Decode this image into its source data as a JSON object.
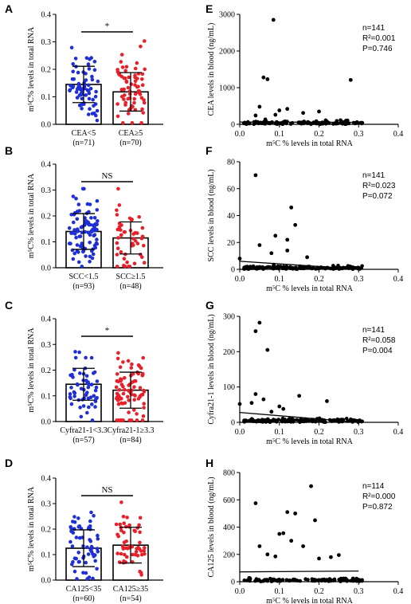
{
  "chart_data": [
    {
      "panel": "A",
      "type": "bar",
      "ylabel": "m⁵C% levels in total RNA",
      "ylim": [
        0,
        0.4
      ],
      "yticks": [
        0,
        0.1,
        0.2,
        0.3,
        0.4
      ],
      "categories": [
        "CEA<5",
        "CEA≥5"
      ],
      "ns": [
        "(n=71)",
        "(n=70)"
      ],
      "means": [
        0.145,
        0.118
      ],
      "sds": [
        0.066,
        0.07
      ],
      "point_colors": [
        "#1f2fd6",
        "#e8202a"
      ],
      "sig": "*"
    },
    {
      "panel": "B",
      "type": "bar",
      "ylabel": "m⁵C% levels in total RNA",
      "ylim": [
        0,
        0.4
      ],
      "yticks": [
        0,
        0.1,
        0.2,
        0.3,
        0.4
      ],
      "categories": [
        "SCC<1.5",
        "SCC≥1.5"
      ],
      "ns": [
        "(n=93)",
        "(n=48)"
      ],
      "means": [
        0.14,
        0.115
      ],
      "sds": [
        0.069,
        0.062
      ],
      "point_colors": [
        "#1f2fd6",
        "#e8202a"
      ],
      "sig": "NS"
    },
    {
      "panel": "C",
      "type": "bar",
      "ylabel": "m⁵C% levels in total RNA",
      "ylim": [
        0,
        0.4
      ],
      "yticks": [
        0,
        0.1,
        0.2,
        0.3,
        0.4
      ],
      "categories": [
        "Cyfra21-1<3.3",
        "Cyfra21-1≥3.3"
      ],
      "ns": [
        "(n=57)",
        "(n=84)"
      ],
      "means": [
        0.145,
        0.122
      ],
      "sds": [
        0.062,
        0.07
      ],
      "point_colors": [
        "#1f2fd6",
        "#e8202a"
      ],
      "sig": "*"
    },
    {
      "panel": "D",
      "type": "bar",
      "ylabel": "m⁵C% levels in total RNA",
      "ylim": [
        0,
        0.4
      ],
      "yticks": [
        0,
        0.1,
        0.2,
        0.3,
        0.4
      ],
      "categories": [
        "CA125<35",
        "CA125≥35"
      ],
      "ns": [
        "(n=60)",
        "(n=54)"
      ],
      "means": [
        0.125,
        0.137
      ],
      "sds": [
        0.072,
        0.07
      ],
      "point_colors": [
        "#1f2fd6",
        "#e8202a"
      ],
      "sig": "NS"
    },
    {
      "panel": "E",
      "type": "scatter",
      "xlabel": "m⁵C % levels in total RNA",
      "ylabel": "CEA levels in blood (ng/mL)",
      "xlim": [
        0,
        0.4
      ],
      "xticks": [
        0.0,
        0.1,
        0.2,
        0.3,
        0.4
      ],
      "ylim": [
        0,
        3000
      ],
      "yticks": [
        0,
        1000,
        2000,
        3000
      ],
      "stats": [
        "n=141",
        "R²=0.001",
        "P=0.746"
      ],
      "fit": [
        [
          0.0,
          62
        ],
        [
          0.3,
          55
        ]
      ],
      "outliers": [
        [
          0.085,
          2850
        ],
        [
          0.06,
          1280
        ],
        [
          0.07,
          1230
        ],
        [
          0.28,
          1210
        ],
        [
          0.05,
          480
        ],
        [
          0.1,
          380
        ],
        [
          0.12,
          420
        ],
        [
          0.16,
          310
        ],
        [
          0.2,
          350
        ],
        [
          0.09,
          260
        ],
        [
          0.04,
          240
        ]
      ]
    },
    {
      "panel": "F",
      "type": "scatter",
      "xlabel": "m⁵C % levels in total RNA",
      "ylabel": "SCC levels in blood (ng/mL)",
      "xlim": [
        0,
        0.4
      ],
      "xticks": [
        0.0,
        0.1,
        0.2,
        0.3,
        0.4
      ],
      "ylim": [
        0,
        80
      ],
      "yticks": [
        0,
        20,
        40,
        60,
        80
      ],
      "stats": [
        "n=141",
        "R²=0.023",
        "P=0.072"
      ],
      "fit": [
        [
          0.0,
          6
        ],
        [
          0.3,
          0.2
        ]
      ],
      "outliers": [
        [
          0.04,
          70
        ],
        [
          0.13,
          46
        ],
        [
          0.14,
          33
        ],
        [
          0.09,
          25
        ],
        [
          0.12,
          22
        ],
        [
          0.05,
          18
        ],
        [
          0.12,
          14
        ],
        [
          0.0,
          8
        ],
        [
          0.17,
          9
        ],
        [
          0.08,
          12
        ]
      ]
    },
    {
      "panel": "G",
      "type": "scatter",
      "xlabel": "m⁵C % levels in total RNA",
      "ylabel": "Cyfra21-1 levels in blood (ng/mL)",
      "xlim": [
        0,
        0.4
      ],
      "xticks": [
        0.0,
        0.1,
        0.2,
        0.3,
        0.4
      ],
      "ylim": [
        0,
        300
      ],
      "yticks": [
        0,
        100,
        200,
        300
      ],
      "stats": [
        "n=141",
        "R²=0.058",
        "P=0.004"
      ],
      "fit": [
        [
          0.0,
          28
        ],
        [
          0.3,
          0
        ]
      ],
      "outliers": [
        [
          0.05,
          282
        ],
        [
          0.04,
          258
        ],
        [
          0.07,
          205
        ],
        [
          0.04,
          80
        ],
        [
          0.03,
          55
        ],
        [
          0.15,
          75
        ],
        [
          0.22,
          60
        ],
        [
          0.06,
          65
        ],
        [
          0.1,
          45
        ],
        [
          0.11,
          38
        ],
        [
          0.0,
          52
        ],
        [
          0.08,
          30
        ]
      ]
    },
    {
      "panel": "H",
      "type": "scatter",
      "xlabel": "m⁵C % levels in total RNA",
      "ylabel": "CA125 levels in blood (ng/mL)",
      "xlim": [
        0,
        0.4
      ],
      "xticks": [
        0.0,
        0.1,
        0.2,
        0.3,
        0.4
      ],
      "ylim": [
        0,
        800
      ],
      "yticks": [
        0,
        200,
        400,
        600,
        800
      ],
      "stats": [
        "n=114",
        "R²=0.000",
        "P=0.872"
      ],
      "fit": [
        [
          0.0,
          72
        ],
        [
          0.3,
          78
        ]
      ],
      "outliers": [
        [
          0.04,
          575
        ],
        [
          0.18,
          700
        ],
        [
          0.19,
          450
        ],
        [
          0.12,
          510
        ],
        [
          0.1,
          350
        ],
        [
          0.11,
          355
        ],
        [
          0.14,
          500
        ],
        [
          0.13,
          300
        ],
        [
          0.16,
          260
        ],
        [
          0.05,
          260
        ],
        [
          0.25,
          195
        ],
        [
          0.23,
          180
        ],
        [
          0.07,
          200
        ],
        [
          0.2,
          170
        ],
        [
          0.09,
          185
        ]
      ]
    }
  ]
}
